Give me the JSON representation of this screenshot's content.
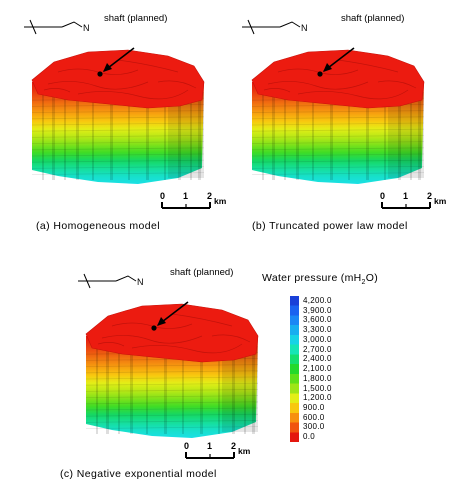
{
  "panels": [
    {
      "id": "a",
      "caption": "(a) Homogeneous model",
      "north": "N",
      "shaft_label": "shaft (planned)",
      "scale": {
        "ticks": [
          "0",
          "1",
          "2"
        ],
        "unit": "km"
      }
    },
    {
      "id": "b",
      "caption": "(b) Truncated power law model",
      "north": "N",
      "shaft_label": "shaft (planned)",
      "scale": {
        "ticks": [
          "0",
          "1",
          "2"
        ],
        "unit": "km"
      }
    },
    {
      "id": "c",
      "caption": "(c) Negative exponential model",
      "north": "N",
      "shaft_label": "shaft (planned)",
      "scale": {
        "ticks": [
          "0",
          "1",
          "2"
        ],
        "unit": "km"
      }
    }
  ],
  "legend": {
    "title_prefix": "Water pressure (mH",
    "title_sub": "2",
    "title_suffix": "O)",
    "values": [
      "4,200.0",
      "3,900.0",
      "3,600.0",
      "3,300.0",
      "3,000.0",
      "2,700.0",
      "2,400.0",
      "2,100.0",
      "1,800.0",
      "1,500.0",
      "1,200.0",
      "900.0",
      "600.0",
      "300.0",
      "0.0"
    ],
    "colors": [
      "#1a40d8",
      "#1b62f0",
      "#1b87f5",
      "#18aef0",
      "#17d3e6",
      "#16e5b5",
      "#15df6e",
      "#24d92c",
      "#5fe01a",
      "#9ee517",
      "#e3ee17",
      "#f8c80f",
      "#f7900f",
      "#f0540f",
      "#e4170e"
    ]
  }
}
